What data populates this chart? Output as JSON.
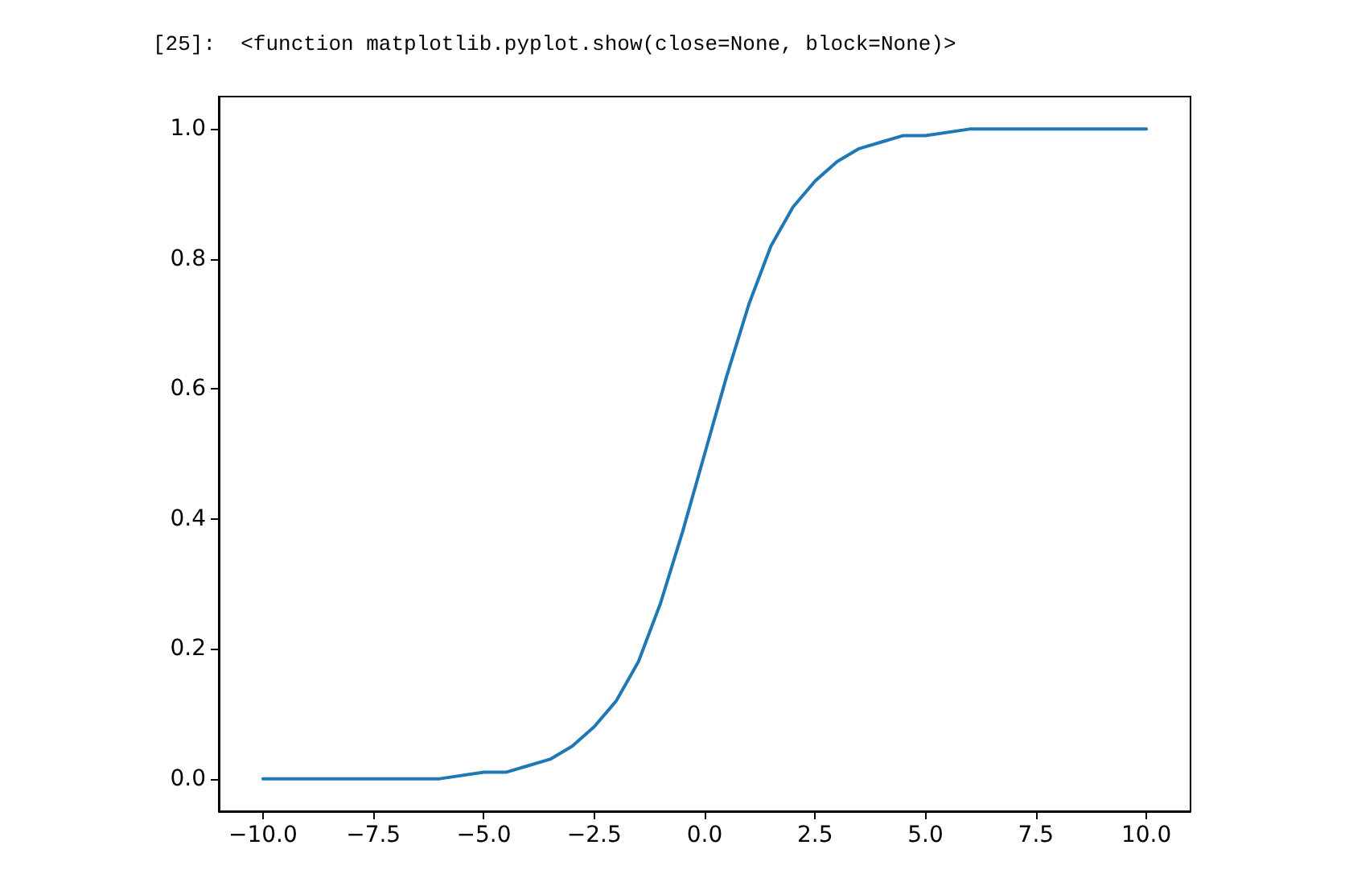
{
  "chart_data": {
    "type": "line",
    "annotations": [
      "[25]:  <function matplotlib.pyplot.show(close=None, block=None)>"
    ],
    "x": [
      -10,
      -9,
      -8,
      -7,
      -6,
      -5,
      -4.5,
      -4,
      -3.5,
      -3,
      -2.5,
      -2,
      -1.5,
      -1,
      -0.5,
      0,
      0.5,
      1,
      1.5,
      2,
      2.5,
      3,
      3.5,
      4,
      4.5,
      5,
      6,
      7,
      8,
      9,
      10
    ],
    "series": [
      {
        "color": "#1f77b4",
        "values": [
          0,
          0,
          0,
          0,
          0,
          0.01,
          0.01,
          0.02,
          0.03,
          0.05,
          0.08,
          0.12,
          0.18,
          0.27,
          0.38,
          0.5,
          0.62,
          0.73,
          0.82,
          0.88,
          0.92,
          0.95,
          0.97,
          0.98,
          0.99,
          0.99,
          1,
          1,
          1,
          1,
          1
        ]
      }
    ],
    "xlim": [
      -11,
      11
    ],
    "ylim": [
      -0.05,
      1.05
    ],
    "xticks": [
      {
        "value": -10,
        "label": "−10.0"
      },
      {
        "value": -7.5,
        "label": "−7.5"
      },
      {
        "value": -5,
        "label": "−5.0"
      },
      {
        "value": -2.5,
        "label": "−2.5"
      },
      {
        "value": 0,
        "label": "0.0"
      },
      {
        "value": 2.5,
        "label": "2.5"
      },
      {
        "value": 5,
        "label": "5.0"
      },
      {
        "value": 7.5,
        "label": "7.5"
      },
      {
        "value": 10,
        "label": "10.0"
      }
    ],
    "yticks": [
      {
        "value": 0,
        "label": "0.0"
      },
      {
        "value": 0.2,
        "label": "0.2"
      },
      {
        "value": 0.4,
        "label": "0.4"
      },
      {
        "value": 0.6,
        "label": "0.6"
      },
      {
        "value": 0.8,
        "label": "0.8"
      },
      {
        "value": 1,
        "label": "1.0"
      }
    ],
    "grid": false,
    "marker": "none",
    "line_style": "solid"
  }
}
